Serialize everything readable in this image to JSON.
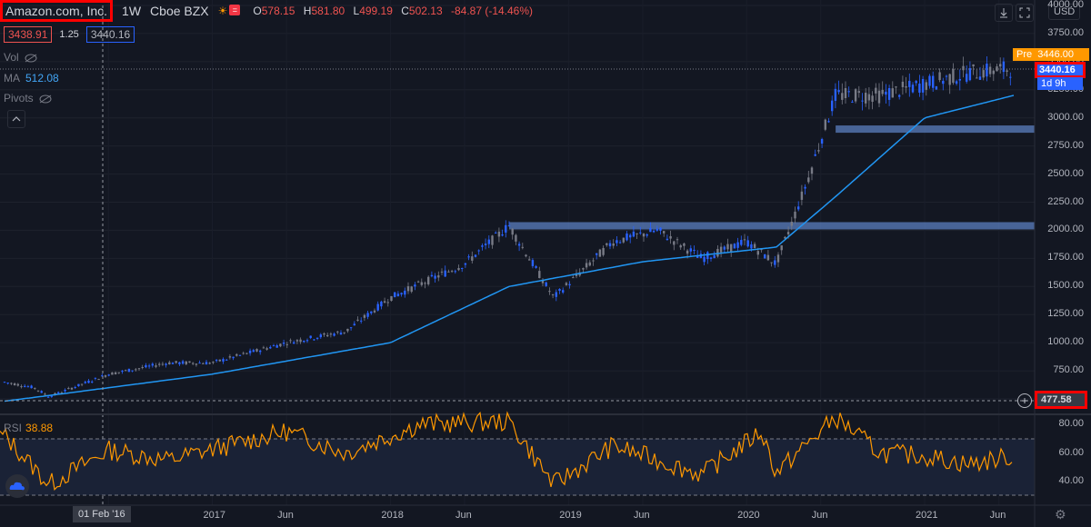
{
  "symbol": {
    "name": "Amazon.com, Inc.",
    "interval": "1W",
    "exchange": "Cboe BZX",
    "ohlc": {
      "o_label": "O",
      "o": "578.15",
      "h_label": "H",
      "h": "581.80",
      "l_label": "L",
      "l": "499.19",
      "c_label": "C",
      "c": "502.13",
      "change": "-84.87 (-14.46%)"
    }
  },
  "quote": {
    "bid": "3438.91",
    "spread": "1.25",
    "ask": "3440.16"
  },
  "indicators": {
    "vol_label": "Vol",
    "ma_label": "MA",
    "ma_value": "512.08",
    "pivots_label": "Pivots",
    "rsi_label": "RSI",
    "rsi_value": "38.88"
  },
  "price_axis": {
    "currency": "USD",
    "ticks": [
      "4000.00",
      "3750.00",
      "3500.00",
      "3250.00",
      "3000.00",
      "2750.00",
      "2500.00",
      "2250.00",
      "2000.00",
      "1750.00",
      "1500.00",
      "1250.00",
      "1000.00",
      "750.00",
      "500.00"
    ],
    "rsi_ticks": [
      "80.00",
      "60.00",
      "40.00"
    ]
  },
  "tags": {
    "pre_label": "Pre",
    "pre_value": "3446.00",
    "last_value": "3440.16",
    "countdown": "1d 9h",
    "crosshair_value": "477.58"
  },
  "time_axis": {
    "labels": [
      "Jun",
      "2017",
      "Jun",
      "2018",
      "Jun",
      "2019",
      "Jun",
      "2020",
      "Jun",
      "2021",
      "Jun"
    ],
    "crosshair_label": "01 Feb '16"
  },
  "colors": {
    "bg": "#131722",
    "candle": "#2962ff",
    "ma": "#2196f3",
    "rsi": "#ff9800",
    "zone": "#5b7fbf"
  },
  "icons": {
    "download": "download-icon",
    "fullscreen": "fullscreen-icon",
    "settings": "gear-icon",
    "collapse": "chevron-up-icon",
    "logo": "cloud-logo-icon"
  },
  "chart_data": {
    "type": "candlestick",
    "interval": "1W",
    "ma_period_value": 512.08,
    "ylim": [
      400,
      4000
    ],
    "price_path": [
      [
        "2015-11",
        650
      ],
      [
        "2016-01",
        600
      ],
      [
        "2016-02",
        520
      ],
      [
        "2016-06",
        720
      ],
      [
        "2016-10",
        820
      ],
      [
        "2017-01",
        820
      ],
      [
        "2017-06",
        1000
      ],
      [
        "2017-10",
        1100
      ],
      [
        "2018-01",
        1400
      ],
      [
        "2018-06",
        1700
      ],
      [
        "2018-09",
        2040
      ],
      [
        "2018-12",
        1400
      ],
      [
        "2019-04",
        1900
      ],
      [
        "2019-07",
        2000
      ],
      [
        "2019-10",
        1750
      ],
      [
        "2020-01",
        1900
      ],
      [
        "2020-03",
        1700
      ],
      [
        "2020-05",
        2400
      ],
      [
        "2020-07",
        3200
      ],
      [
        "2020-10",
        3200
      ],
      [
        "2021-01",
        3300
      ],
      [
        "2021-04",
        3400
      ],
      [
        "2021-07",
        3440
      ]
    ],
    "ma_path": [
      [
        "2015-11",
        480
      ],
      [
        "2016-02",
        530
      ],
      [
        "2017-01",
        720
      ],
      [
        "2018-01",
        1000
      ],
      [
        "2018-09",
        1500
      ],
      [
        "2019-06",
        1720
      ],
      [
        "2020-03",
        1850
      ],
      [
        "2020-07",
        2300
      ],
      [
        "2021-01",
        3000
      ],
      [
        "2021-07",
        3200
      ]
    ],
    "zones": [
      {
        "from": "2018-09",
        "to": "2021-07",
        "price": 2040
      },
      {
        "from": "2020-07",
        "to": "2021-07",
        "price": 2900
      }
    ],
    "rsi_path": [
      [
        "2015-11",
        72
      ],
      [
        "2016-02",
        38
      ],
      [
        "2016-06",
        62
      ],
      [
        "2016-10",
        55
      ],
      [
        "2017-06",
        75
      ],
      [
        "2017-10",
        60
      ],
      [
        "2018-03",
        80
      ],
      [
        "2018-09",
        82
      ],
      [
        "2018-12",
        38
      ],
      [
        "2019-04",
        65
      ],
      [
        "2019-10",
        45
      ],
      [
        "2020-02",
        75
      ],
      [
        "2020-03",
        46
      ],
      [
        "2020-07",
        85
      ],
      [
        "2020-10",
        60
      ],
      [
        "2021-01",
        58
      ],
      [
        "2021-04",
        52
      ],
      [
        "2021-07",
        58
      ]
    ],
    "rsi_ylim": [
      30,
      90
    ],
    "rsi_bands": [
      70,
      30
    ]
  }
}
